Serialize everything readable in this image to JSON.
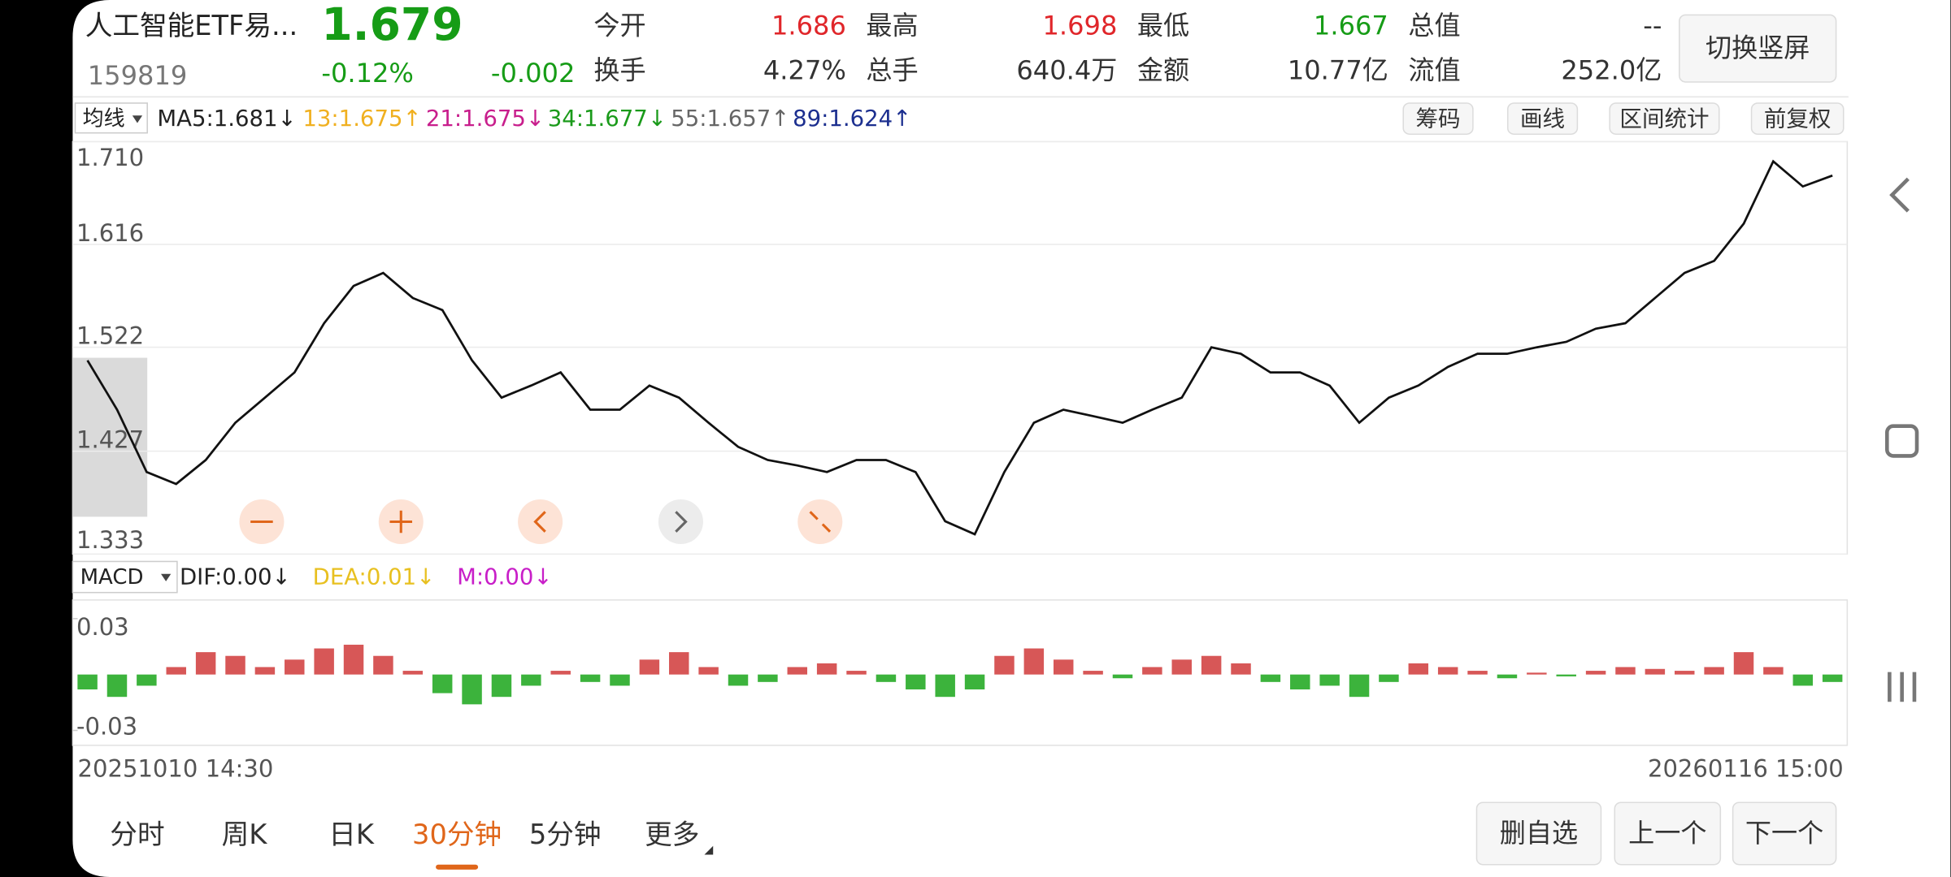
{
  "header": {
    "name": "人工智能ETF易...",
    "code": "159819",
    "price": "1.679",
    "change_pct": "-0.12%",
    "change": "-0.002",
    "switch_button": "切换竖屏"
  },
  "stats": [
    {
      "label": "今开",
      "value": "1.686",
      "color": "#e0262a"
    },
    {
      "label": "最高",
      "value": "1.698",
      "color": "#e0262a"
    },
    {
      "label": "最低",
      "value": "1.667",
      "color": "#169c16"
    },
    {
      "label": "总值",
      "value": "--",
      "color": "#333333"
    },
    {
      "label": "换手",
      "value": "4.27%",
      "color": "#333333"
    },
    {
      "label": "总手",
      "value": "640.4万",
      "color": "#333333"
    },
    {
      "label": "金额",
      "value": "10.77亿",
      "color": "#333333"
    },
    {
      "label": "流值",
      "value": "252.0亿",
      "color": "#333333"
    }
  ],
  "ma_bar": {
    "selector": "均线",
    "items": [
      {
        "text": "MA5:1.681↓",
        "color": "#222222"
      },
      {
        "text": "13:1.675↑",
        "color": "#f0b020"
      },
      {
        "text": "21:1.675↓",
        "color": "#c81e8c"
      },
      {
        "text": "34:1.677↓",
        "color": "#1a9a1a"
      },
      {
        "text": "55:1.657↑",
        "color": "#666666"
      },
      {
        "text": "89:1.624↑",
        "color": "#1c2f8f"
      }
    ],
    "buttons": [
      "筹码",
      "画线",
      "区间统计",
      "前复权"
    ]
  },
  "chart_data": {
    "type": "line",
    "color": "#111111",
    "ylim": [
      1.333,
      1.71
    ],
    "yticks": [
      {
        "value": 1.71,
        "label": "1.710"
      },
      1.616,
      1.522,
      1.427,
      1.333
    ],
    "values": [
      1.51,
      1.465,
      1.408,
      1.397,
      1.419,
      1.453,
      1.476,
      1.499,
      1.544,
      1.578,
      1.59,
      1.567,
      1.556,
      1.51,
      1.476,
      1.487,
      1.499,
      1.465,
      1.465,
      1.487,
      1.476,
      1.453,
      1.431,
      1.419,
      1.414,
      1.408,
      1.419,
      1.419,
      1.408,
      1.363,
      1.351,
      1.408,
      1.453,
      1.465,
      1.459,
      1.453,
      1.465,
      1.476,
      1.522,
      1.516,
      1.499,
      1.499,
      1.487,
      1.453,
      1.476,
      1.487,
      1.504,
      1.516,
      1.516,
      1.522,
      1.527,
      1.539,
      1.544,
      1.567,
      1.59,
      1.601,
      1.635,
      1.692,
      1.669,
      1.679
    ],
    "x_start": "20251010 14:30",
    "x_end": "20260116 15:00"
  },
  "macd": {
    "type": "bar",
    "selector": "MACD",
    "items": [
      {
        "text": "DIF:0.00↓",
        "color": "#222222"
      },
      {
        "text": "DEA:0.01↓",
        "color": "#e8c020"
      },
      {
        "text": "M:0.00↓",
        "color": "#c81ec8"
      }
    ],
    "ylim": [
      -0.038,
      0.04
    ],
    "yticks": [
      0.03,
      -0.03
    ],
    "up_color": "#d03a3a",
    "down_color": "#1aa61a",
    "values": [
      -0.008,
      -0.012,
      -0.006,
      0.004,
      0.012,
      0.01,
      0.004,
      0.008,
      0.014,
      0.016,
      0.01,
      0.002,
      -0.01,
      -0.016,
      -0.012,
      -0.006,
      0.002,
      -0.004,
      -0.006,
      0.008,
      0.012,
      0.004,
      -0.006,
      -0.004,
      0.004,
      0.006,
      0.002,
      -0.004,
      -0.008,
      -0.012,
      -0.008,
      0.01,
      0.014,
      0.008,
      0.002,
      -0.002,
      0.004,
      0.008,
      0.01,
      0.006,
      -0.004,
      -0.008,
      -0.006,
      -0.012,
      -0.004,
      0.006,
      0.004,
      0.002,
      -0.002,
      0.001,
      -0.001,
      0.002,
      0.004,
      0.003,
      0.002,
      0.004,
      0.012,
      0.004,
      -0.006,
      -0.004
    ]
  },
  "tabs": {
    "items": [
      "分时",
      "周K",
      "日K",
      "30分钟",
      "5分钟",
      "更多"
    ],
    "active": 3,
    "active_color": "#e0661a"
  },
  "actions": [
    "删自选",
    "上一个",
    "下一个"
  ]
}
